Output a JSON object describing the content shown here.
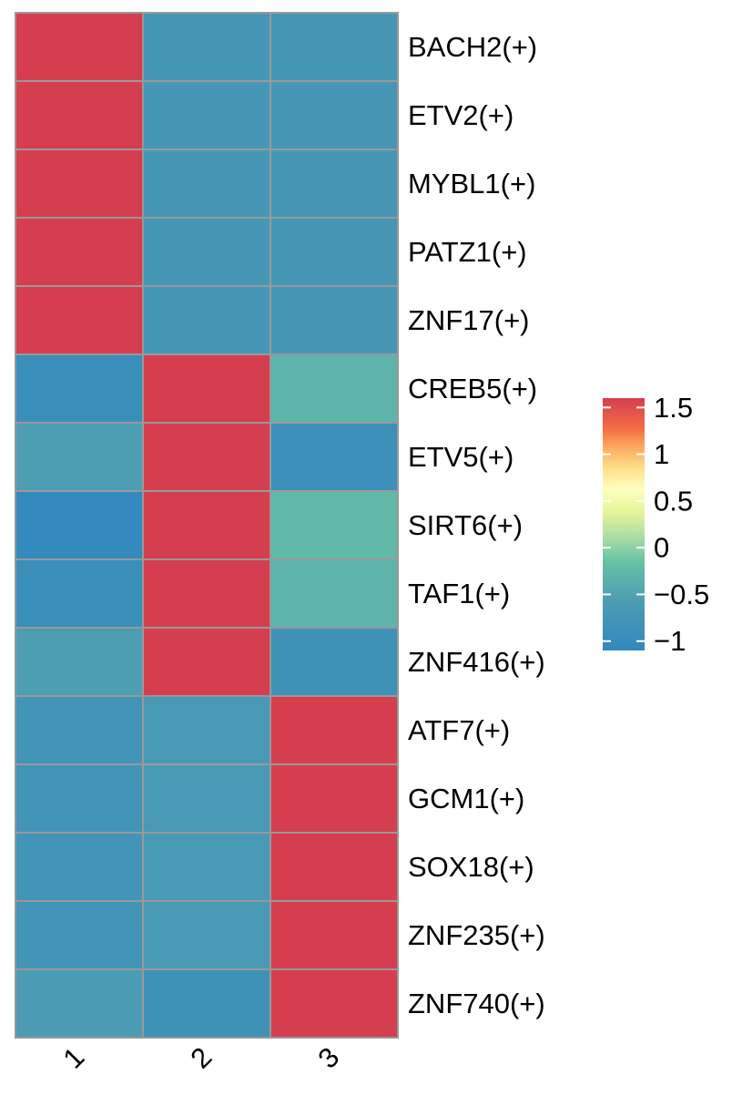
{
  "chart_data": {
    "type": "heatmap",
    "title": "",
    "xlabel": "",
    "ylabel": "",
    "columns": [
      "1",
      "2",
      "3"
    ],
    "rows": [
      "BACH2(+)",
      "ETV2(+)",
      "MYBL1(+)",
      "PATZ1(+)",
      "ZNF17(+)",
      "CREB5(+)",
      "ETV5(+)",
      "SIRT6(+)",
      "TAF1(+)",
      "ZNF416(+)",
      "ATF7(+)",
      "GCM1(+)",
      "SOX18(+)",
      "ZNF235(+)",
      "ZNF740(+)"
    ],
    "values": [
      [
        1.5,
        -0.7,
        -0.7
      ],
      [
        1.5,
        -0.7,
        -0.7
      ],
      [
        1.5,
        -0.7,
        -0.7
      ],
      [
        1.5,
        -0.7,
        -0.7
      ],
      [
        1.5,
        -0.7,
        -0.7
      ],
      [
        -0.95,
        1.5,
        -0.3
      ],
      [
        -0.55,
        1.5,
        -0.9
      ],
      [
        -1.05,
        1.5,
        -0.25
      ],
      [
        -0.95,
        1.5,
        -0.3
      ],
      [
        -0.55,
        1.5,
        -0.85
      ],
      [
        -0.75,
        -0.65,
        1.5
      ],
      [
        -0.75,
        -0.65,
        1.5
      ],
      [
        -0.75,
        -0.65,
        1.5
      ],
      [
        -0.75,
        -0.65,
        1.5
      ],
      [
        -0.6,
        -0.85,
        1.5
      ]
    ],
    "legend": {
      "range": [
        -1.1,
        1.6
      ],
      "ticks": [
        -1,
        -0.5,
        0,
        0.5,
        1,
        1.5
      ],
      "tick_labels": [
        "−1",
        "−0.5",
        "0",
        "0.5",
        "1",
        "1.5"
      ],
      "placement": "right"
    },
    "colors": {
      "low": "#3288bd",
      "mid_low": "#66c2a5",
      "mid_high": "#fee08b",
      "high": "#d53e4f",
      "grid": "#999999"
    }
  }
}
